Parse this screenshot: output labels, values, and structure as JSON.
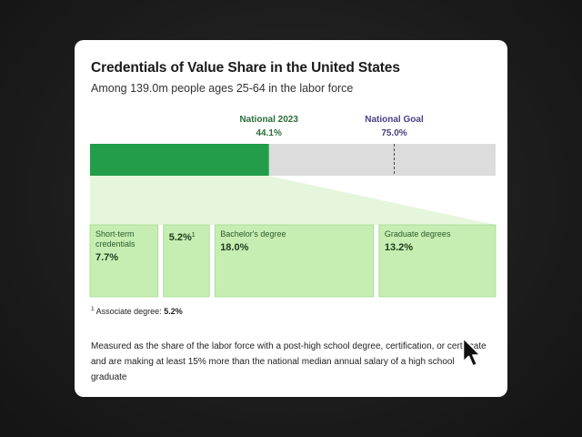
{
  "colors": {
    "filled": "#239d4a",
    "remaining": "#dcdcdc",
    "national_label": "#2b6e3a",
    "goal_label": "#4a3f84",
    "tile": "#c6eeb2",
    "tile_border": "#a3d98c",
    "wedge": "#e6f6dc"
  },
  "card": {
    "title": "Credentials of Value Share in the United States",
    "subtitle": "Among 139.0m people ages 25-64 in the labor force"
  },
  "footnote": {
    "marker": "1",
    "label": "Associate degree:",
    "value": "5.2%"
  },
  "note": "Measured as the share of the labor force with a post-high school degree, certification, or certificate and are making at least 15% more than the national median annual salary of a high school graduate",
  "chart_data": {
    "type": "bar",
    "orientation": "horizontal-stacked",
    "scale_max": 100,
    "markers": [
      {
        "label": "National 2023",
        "value": 44.1,
        "value_label": "44.1%",
        "color_key": "national_label"
      },
      {
        "label": "National Goal",
        "value": 75.0,
        "value_label": "75.0%",
        "color_key": "goal_label"
      }
    ],
    "breakdown": [
      {
        "label": "Short-term credentials",
        "value": 7.7,
        "value_label": "7.7%"
      },
      {
        "label": "",
        "value": 5.2,
        "value_label": "5.2%",
        "footnote": "1"
      },
      {
        "label": "Bachelor's degree",
        "value": 18.0,
        "value_label": "18.0%"
      },
      {
        "label": "Graduate degrees",
        "value": 13.2,
        "value_label": "13.2%"
      }
    ]
  }
}
